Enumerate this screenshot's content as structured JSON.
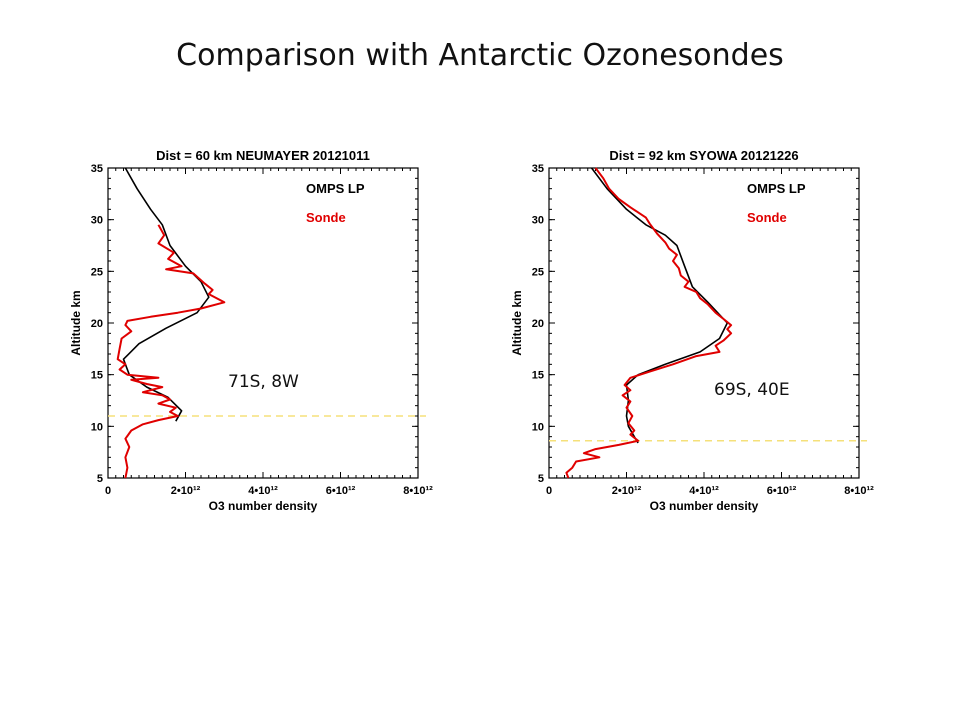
{
  "slide": {
    "title": "Comparison with Antarctic Ozonesondes"
  },
  "chart_data": [
    {
      "type": "line",
      "title": "Dist = 60 km NEUMAYER 20121011",
      "xlabel": "O3 number density",
      "ylabel": "Altitude km",
      "xlim": [
        0,
        8000000000000.0
      ],
      "ylim": [
        5,
        35
      ],
      "x_ticks": [
        "0",
        "2•10¹²",
        "4•10¹²",
        "6•10¹²",
        "8•10¹²"
      ],
      "y_ticks": [
        "5",
        "10",
        "15",
        "20",
        "25",
        "30",
        "35"
      ],
      "legend": {
        "placement": "top-right",
        "entries": [
          "OMPS LP",
          "Sonde"
        ]
      },
      "annotation": "71S, 8W",
      "reference_line_altitude": 11.0,
      "colors": {
        "omps": "#000000",
        "sonde": "#e00000",
        "ref_line": "#f5e07a"
      },
      "series": [
        {
          "name": "OMPS LP",
          "color": "#000000",
          "points": [
            [
              450000000000.0,
              35
            ],
            [
              750000000000.0,
              33
            ],
            [
              1100000000000.0,
              31
            ],
            [
              1400000000000.0,
              29.5
            ],
            [
              1600000000000.0,
              27.5
            ],
            [
              2000000000000.0,
              25.5
            ],
            [
              2400000000000.0,
              24
            ],
            [
              2600000000000.0,
              22.5
            ],
            [
              2300000000000.0,
              21
            ],
            [
              1500000000000.0,
              19.5
            ],
            [
              800000000000.0,
              18
            ],
            [
              400000000000.0,
              16.5
            ],
            [
              550000000000.0,
              15
            ],
            [
              1000000000000.0,
              13.8
            ],
            [
              1550000000000.0,
              12.8
            ],
            [
              1900000000000.0,
              11.5
            ],
            [
              1750000000000.0,
              10.5
            ]
          ]
        },
        {
          "name": "Sonde",
          "color": "#e00000",
          "points": [
            [
              1300000000000.0,
              29.5
            ],
            [
              1450000000000.0,
              28.5
            ],
            [
              1300000000000.0,
              27.7
            ],
            [
              1700000000000.0,
              26.8
            ],
            [
              1550000000000.0,
              26.2
            ],
            [
              1900000000000.0,
              25.5
            ],
            [
              1500000000000.0,
              25.2
            ],
            [
              2200000000000.0,
              24.8
            ],
            [
              2500000000000.0,
              23.8
            ],
            [
              2700000000000.0,
              23.2
            ],
            [
              2600000000000.0,
              22.8
            ],
            [
              3000000000000.0,
              22.0
            ],
            [
              2400000000000.0,
              21.4
            ],
            [
              1800000000000.0,
              21.0
            ],
            [
              1100000000000.0,
              20.6
            ],
            [
              500000000000.0,
              20.2
            ],
            [
              450000000000.0,
              19.8
            ],
            [
              600000000000.0,
              19.2
            ],
            [
              350000000000.0,
              18.5
            ],
            [
              300000000000.0,
              17.5
            ],
            [
              250000000000.0,
              16.5
            ],
            [
              450000000000.0,
              16.0
            ],
            [
              300000000000.0,
              15.5
            ],
            [
              500000000000.0,
              15.0
            ],
            [
              1300000000000.0,
              14.7
            ],
            [
              600000000000.0,
              14.5
            ],
            [
              1000000000000.0,
              14.1
            ],
            [
              1400000000000.0,
              13.8
            ],
            [
              900000000000.0,
              13.3
            ],
            [
              1400000000000.0,
              13.0
            ],
            [
              1600000000000.0,
              12.6
            ],
            [
              1300000000000.0,
              12.2
            ],
            [
              1750000000000.0,
              11.8
            ],
            [
              1600000000000.0,
              11.4
            ],
            [
              1800000000000.0,
              11.0
            ],
            [
              1300000000000.0,
              10.6
            ],
            [
              900000000000.0,
              10.2
            ],
            [
              600000000000.0,
              9.6
            ],
            [
              450000000000.0,
              8.8
            ],
            [
              550000000000.0,
              8.0
            ],
            [
              450000000000.0,
              7.0
            ],
            [
              500000000000.0,
              6.0
            ],
            [
              450000000000.0,
              5.0
            ]
          ]
        }
      ]
    },
    {
      "type": "line",
      "title": "Dist = 92 km SYOWA 20121226",
      "xlabel": "O3 number density",
      "ylabel": "Altitude km",
      "xlim": [
        0,
        8000000000000.0
      ],
      "ylim": [
        5,
        35
      ],
      "x_ticks": [
        "0",
        "2•10¹²",
        "4•10¹²",
        "6•10¹²",
        "8•10¹²"
      ],
      "y_ticks": [
        "5",
        "10",
        "15",
        "20",
        "25",
        "30",
        "35"
      ],
      "legend": {
        "placement": "top-right",
        "entries": [
          "OMPS LP",
          "Sonde"
        ]
      },
      "annotation": "69S, 40E",
      "reference_line_altitude": 8.6,
      "colors": {
        "omps": "#000000",
        "sonde": "#e00000",
        "ref_line": "#f5e07a"
      },
      "series": [
        {
          "name": "OMPS LP",
          "color": "#000000",
          "points": [
            [
              1100000000000.0,
              35
            ],
            [
              1500000000000.0,
              33
            ],
            [
              2000000000000.0,
              31
            ],
            [
              2500000000000.0,
              29.5
            ],
            [
              3000000000000.0,
              28.5
            ],
            [
              3300000000000.0,
              27.5
            ],
            [
              3500000000000.0,
              25.5
            ],
            [
              3700000000000.0,
              23.5
            ],
            [
              4100000000000.0,
              22
            ],
            [
              4600000000000.0,
              20
            ],
            [
              4400000000000.0,
              18.5
            ],
            [
              3900000000000.0,
              17.2
            ],
            [
              3000000000000.0,
              16.0
            ],
            [
              2300000000000.0,
              15.0
            ],
            [
              2000000000000.0,
              14.0
            ],
            [
              2050000000000.0,
              12.5
            ],
            [
              2000000000000.0,
              11.0
            ],
            [
              2050000000000.0,
              10.0
            ],
            [
              2200000000000.0,
              9.0
            ],
            [
              2300000000000.0,
              8.4
            ]
          ]
        },
        {
          "name": "Sonde",
          "color": "#e00000",
          "points": [
            [
              1200000000000.0,
              35
            ],
            [
              1400000000000.0,
              34
            ],
            [
              1550000000000.0,
              33
            ],
            [
              1800000000000.0,
              32
            ],
            [
              2100000000000.0,
              31.2
            ],
            [
              2500000000000.0,
              30.2
            ],
            [
              2600000000000.0,
              29.6
            ],
            [
              2800000000000.0,
              28.6
            ],
            [
              3000000000000.0,
              27.8
            ],
            [
              3100000000000.0,
              27.2
            ],
            [
              3300000000000.0,
              26.6
            ],
            [
              3200000000000.0,
              26.0
            ],
            [
              3350000000000.0,
              25.3
            ],
            [
              3400000000000.0,
              24.6
            ],
            [
              3600000000000.0,
              24.0
            ],
            [
              3500000000000.0,
              23.5
            ],
            [
              3800000000000.0,
              23.0
            ],
            [
              3900000000000.0,
              22.4
            ],
            [
              4100000000000.0,
              21.8
            ],
            [
              4300000000000.0,
              21.0
            ],
            [
              4500000000000.0,
              20.4
            ],
            [
              4700000000000.0,
              19.8
            ],
            [
              4600000000000.0,
              19.4
            ],
            [
              4700000000000.0,
              19.0
            ],
            [
              4500000000000.0,
              18.3
            ],
            [
              4300000000000.0,
              17.8
            ],
            [
              4400000000000.0,
              17.2
            ],
            [
              3800000000000.0,
              16.8
            ],
            [
              3200000000000.0,
              16.0
            ],
            [
              2600000000000.0,
              15.3
            ],
            [
              2100000000000.0,
              14.7
            ],
            [
              1950000000000.0,
              14.0
            ],
            [
              2100000000000.0,
              13.5
            ],
            [
              1900000000000.0,
              13.0
            ],
            [
              2100000000000.0,
              12.4
            ],
            [
              2000000000000.0,
              11.8
            ],
            [
              2150000000000.0,
              11.0
            ],
            [
              2050000000000.0,
              10.3
            ],
            [
              2200000000000.0,
              9.6
            ],
            [
              2100000000000.0,
              9.2
            ],
            [
              2300000000000.0,
              8.6
            ],
            [
              1800000000000.0,
              8.2
            ],
            [
              1200000000000.0,
              7.8
            ],
            [
              900000000000.0,
              7.4
            ],
            [
              1300000000000.0,
              7.0
            ],
            [
              700000000000.0,
              6.6
            ],
            [
              600000000000.0,
              6.0
            ],
            [
              450000000000.0,
              5.5
            ],
            [
              500000000000.0,
              5.0
            ]
          ]
        }
      ]
    }
  ]
}
